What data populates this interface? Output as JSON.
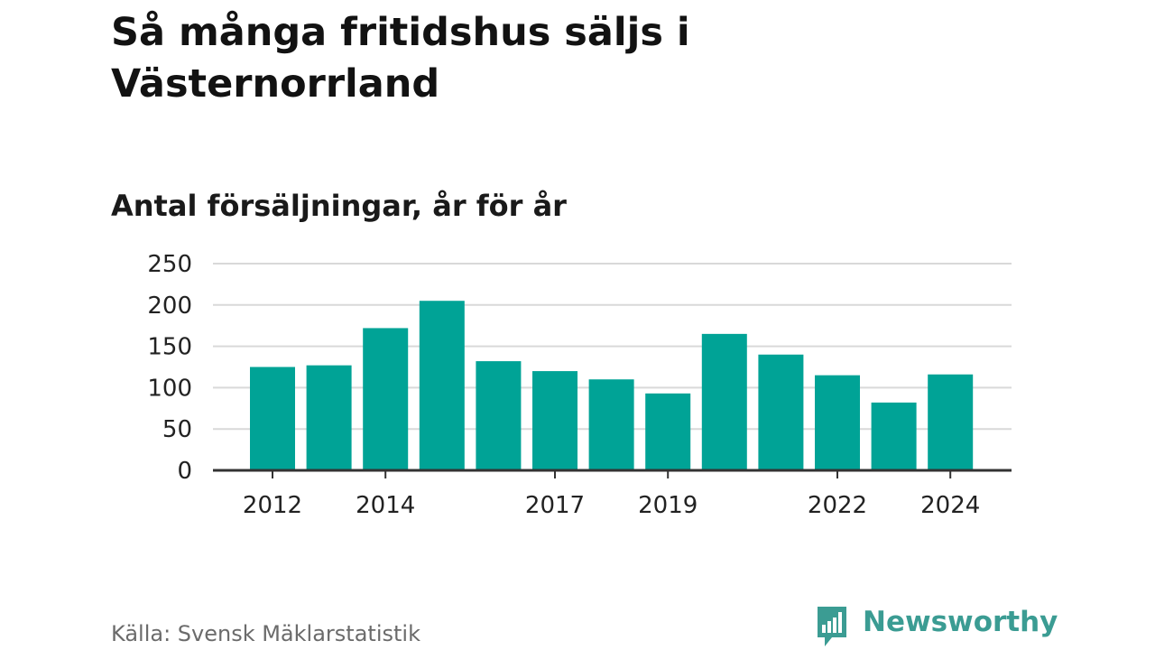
{
  "title": "Så många fritidshus säljs i Västernorrland",
  "subtitle": "Antal försäljningar, år för år",
  "source": "Källa: Svensk Mäklarstatistik",
  "brand": {
    "name": "Newsworthy",
    "icon": "newsworthy-chart-bubble-icon",
    "color": "#3b9c93"
  },
  "chart_data": {
    "type": "bar",
    "categories": [
      "2012",
      "2013",
      "2014",
      "2015",
      "2016",
      "2017",
      "2018",
      "2019",
      "2020",
      "2021",
      "2022",
      "2023",
      "2024"
    ],
    "values": [
      125,
      127,
      172,
      205,
      132,
      120,
      110,
      93,
      165,
      140,
      115,
      82,
      116
    ],
    "xtick_labels": [
      "2012",
      "2014",
      "2017",
      "2019",
      "2022",
      "2024"
    ],
    "yticks": [
      0,
      50,
      100,
      150,
      200,
      250
    ],
    "ylim": [
      0,
      250
    ],
    "bar_color": "#00a396",
    "grid": true,
    "legend": false
  }
}
